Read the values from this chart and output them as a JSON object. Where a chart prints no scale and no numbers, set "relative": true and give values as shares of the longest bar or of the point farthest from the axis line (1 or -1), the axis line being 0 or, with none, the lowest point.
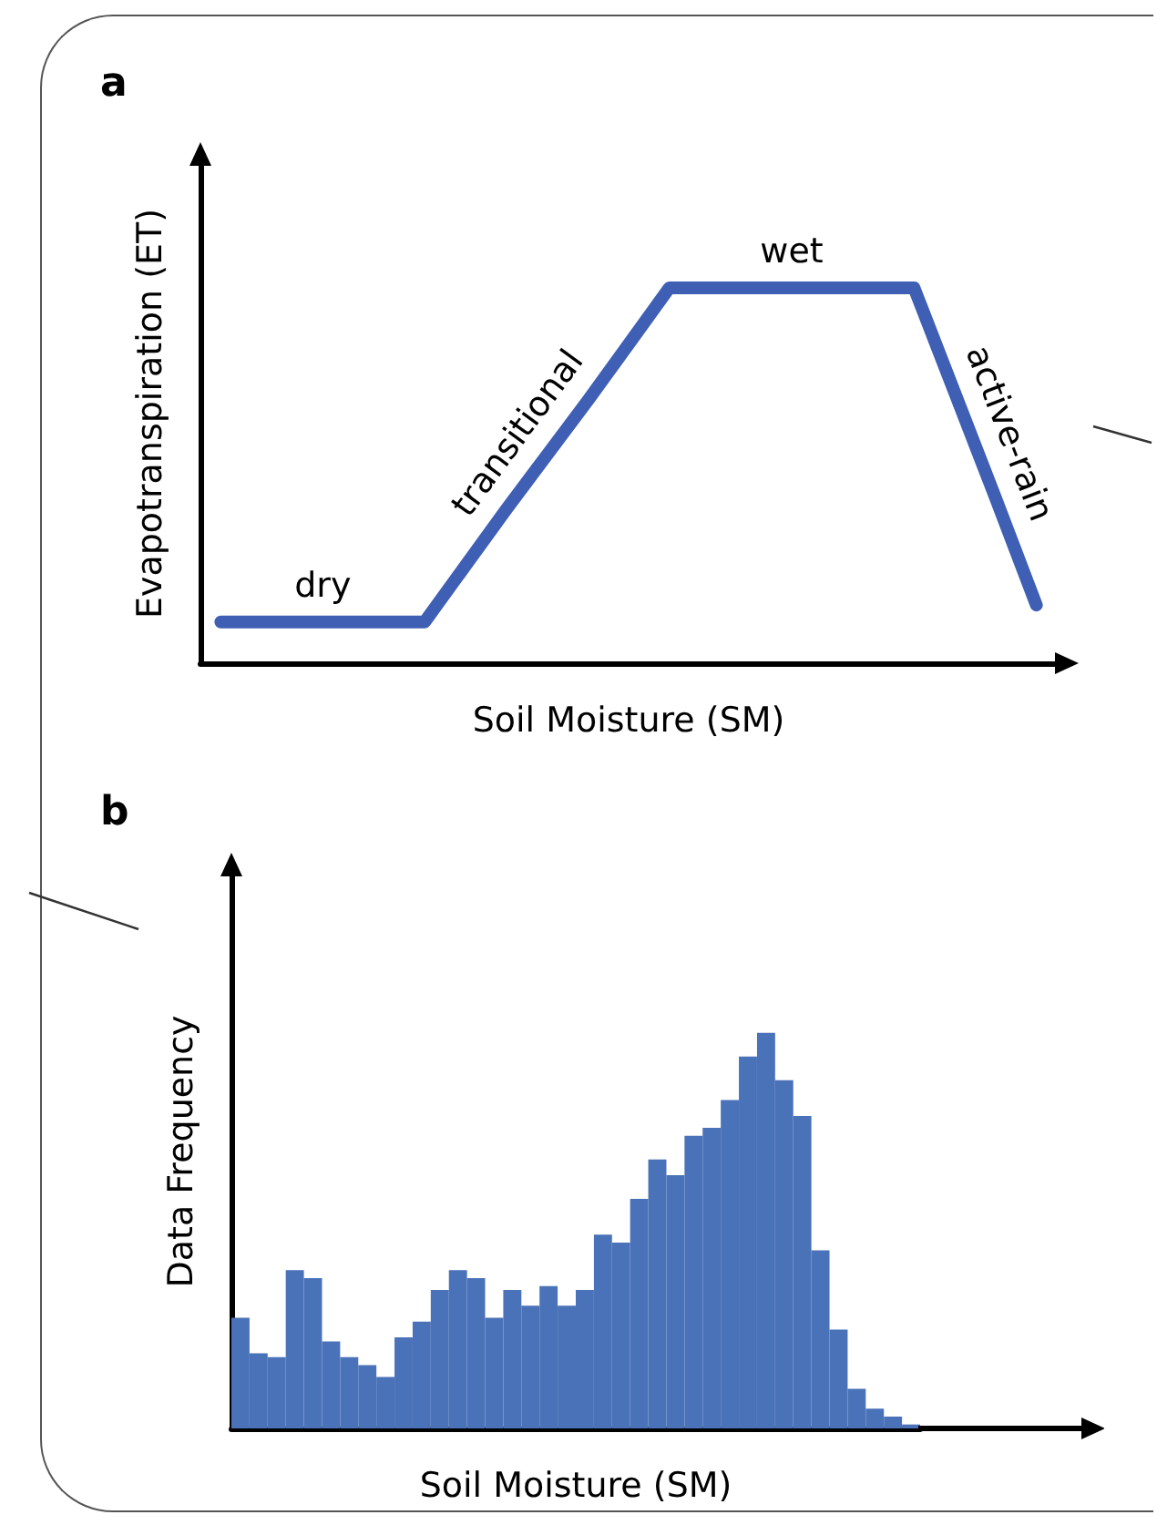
{
  "chart_data": [
    {
      "type": "line",
      "title": "a",
      "xlabel": "Soil Moisture (SM)",
      "ylabel": "Evapotranspiration (ET)",
      "relative": true,
      "line_style": "solid",
      "categories": [
        null,
        null,
        null,
        null,
        null,
        null,
        null,
        null,
        null,
        null,
        null,
        null,
        null,
        null,
        null,
        null,
        null,
        null,
        null,
        null,
        null
      ],
      "series": [
        {
          "color": "#3f5fb5",
          "values": [
            0.11,
            0.11,
            0.11,
            0.11,
            0.11,
            0.11,
            0.26,
            0.41,
            0.555,
            0.7,
            0.85,
            1,
            1,
            1,
            1,
            1,
            1,
            1,
            0.72,
            0.44,
            0.155
          ]
        }
      ],
      "annotations": [
        "dry",
        "transitional",
        "wet",
        "active-rain"
      ]
    },
    {
      "type": "bar",
      "title": "b",
      "xlabel": "Soil Moisture (SM)",
      "ylabel": "Data Frequency",
      "relative": true,
      "categories": [
        null,
        null,
        null,
        null,
        null,
        null,
        null,
        null,
        null,
        null,
        null,
        null,
        null,
        null,
        null,
        null,
        null,
        null,
        null,
        null,
        null,
        null,
        null,
        null,
        null,
        null,
        null,
        null,
        null,
        null,
        null,
        null,
        null,
        null,
        null,
        null,
        null,
        null
      ],
      "series": [
        {
          "color": "#4a72b8",
          "values": [
            0.28,
            0.19,
            0.18,
            0.4,
            0.38,
            0.22,
            0.18,
            0.16,
            0.13,
            0.23,
            0.27,
            0.35,
            0.4,
            0.38,
            0.28,
            0.35,
            0.31,
            0.36,
            0.31,
            0.35,
            0.49,
            0.47,
            0.58,
            0.68,
            0.64,
            0.74,
            0.76,
            0.83,
            0.94,
            1,
            0.88,
            0.79,
            0.45,
            0.25,
            0.1,
            0.05,
            0.03,
            0.01
          ]
        }
      ]
    }
  ]
}
